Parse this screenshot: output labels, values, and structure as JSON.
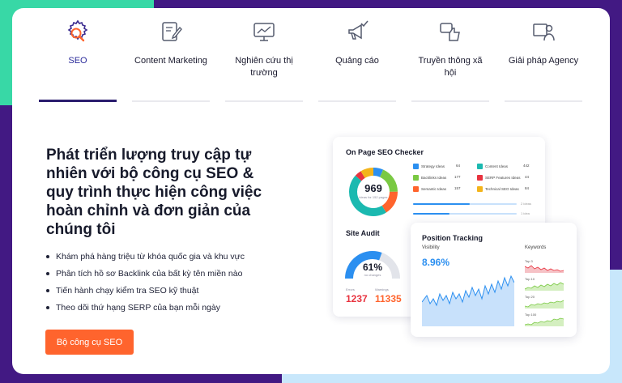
{
  "tabs": [
    {
      "label": "SEO",
      "icon": "seo-gear-magnifier-icon",
      "active": true
    },
    {
      "label": "Content Marketing",
      "icon": "edit-document-icon",
      "active": false
    },
    {
      "label": "Nghiên cứu thị trường",
      "icon": "analytics-monitor-icon",
      "active": false
    },
    {
      "label": "Quảng cáo",
      "icon": "megaphone-check-icon",
      "active": false
    },
    {
      "label": "Truyền thông xã hội",
      "icon": "thumbs-up-chat-icon",
      "active": false
    },
    {
      "label": "Giải pháp Agency",
      "icon": "presenter-board-icon",
      "active": false
    }
  ],
  "hero": {
    "headline": "Phát triển lượng truy cập tự nhiên với bộ công cụ SEO & quy trình thực hiện công việc hoàn chỉnh và đơn giản của chúng tôi",
    "bullets": [
      "Khám phá hàng triệu từ khóa quốc gia và khu vực",
      "Phân tích hồ sơ Backlink của bất kỳ tên miền nào",
      "Tiến hành chạy kiểm tra SEO kỹ thuật",
      "Theo dõi thứ hạng SERP của bạn mỗi ngày"
    ],
    "cta": "Bộ công cụ SEO"
  },
  "on_page": {
    "title": "On Page SEO Checker",
    "total": "969",
    "total_sub": "ideas for 152 pages",
    "ideas": [
      {
        "code": "St",
        "label": "Strategy Ideas",
        "value": "64",
        "color": "#2b8ff0"
      },
      {
        "code": "Co",
        "label": "Content Ideas",
        "value": "442",
        "color": "#1bb9b0"
      },
      {
        "code": "Ba",
        "label": "Backlinks Ideas",
        "value": "177",
        "color": "#7ac943"
      },
      {
        "code": "SF",
        "label": "SERP Features Ideas",
        "value": "44",
        "color": "#e8333f"
      },
      {
        "code": "Se",
        "label": "Semantic Ideas",
        "value": "157",
        "color": "#ff642d"
      },
      {
        "code": "Te",
        "label": "Technical SEO Ideas",
        "value": "84",
        "color": "#f3b41b"
      }
    ],
    "progress": [
      {
        "label": "2 ideas",
        "fill": 0.55
      },
      {
        "label": "1 idea",
        "fill": 0.35
      }
    ]
  },
  "site_audit": {
    "title": "Site Audit",
    "percent": "61%",
    "percent_sub": "no changes",
    "percent_value": 0.61,
    "errors_label": "Errors",
    "errors": "1237",
    "warnings_label": "Warnings",
    "warnings": "11335"
  },
  "position_tracking": {
    "title": "Position Tracking",
    "visibility_label": "Visibility",
    "visibility": "8.96%",
    "keywords_title": "Keywords",
    "keyword_groups": [
      "Top 3",
      "Top 10",
      "Top 20",
      "Top 100"
    ]
  },
  "colors": {
    "accent": "#ff642d",
    "brand_purple": "#421983",
    "brand_green": "#38d8a6",
    "tab_active": "#2a1c6e",
    "chart_blue": "#2b8ff0",
    "error_red": "#e8333f"
  }
}
